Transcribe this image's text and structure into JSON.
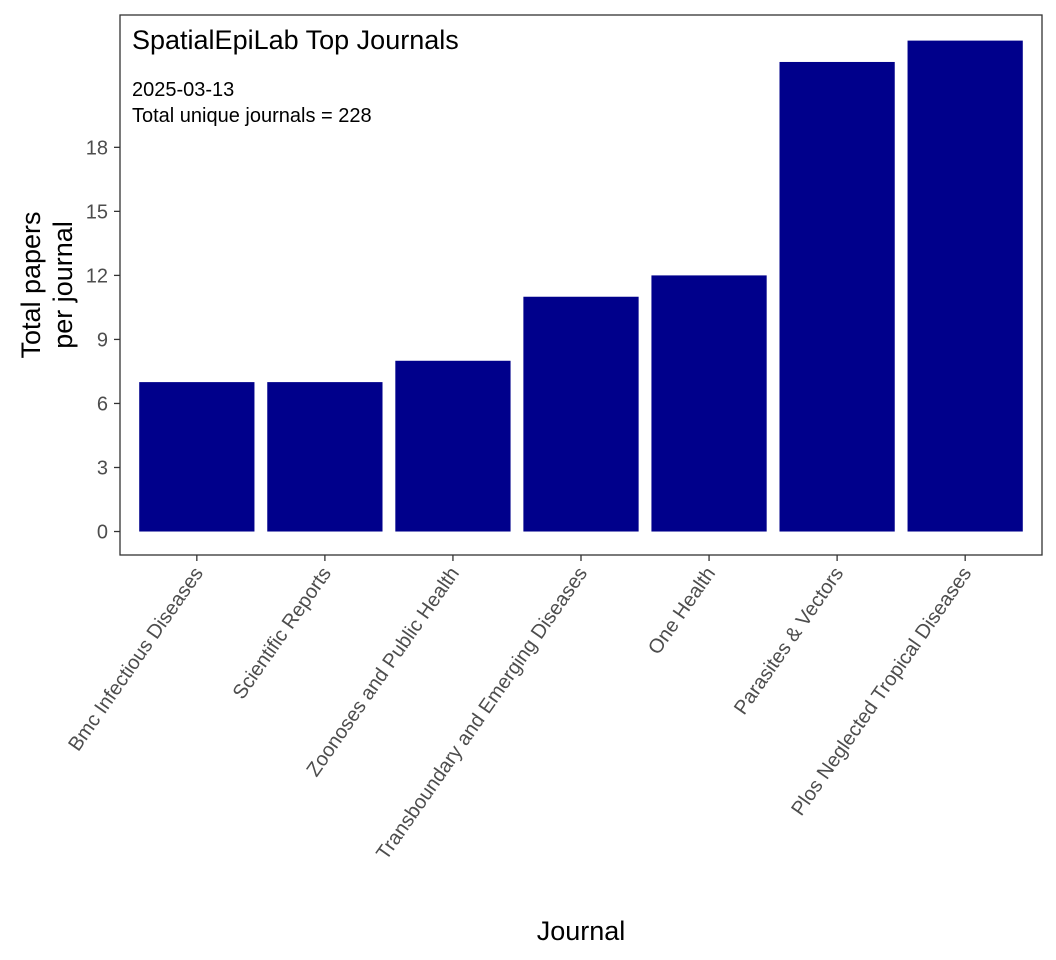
{
  "chart_data": {
    "type": "bar",
    "title": "SpatialEpiLab Top Journals",
    "subtitle_lines": [
      "2025-03-13",
      "Total unique journals =  228"
    ],
    "xlabel": "Journal",
    "ylabel_lines": [
      "Total papers",
      "per journal"
    ],
    "categories": [
      "Bmc Infectious Diseases",
      "Scientific Reports",
      "Zoonoses and Public Health",
      "Transboundary and Emerging Diseases",
      "One Health",
      "Parasites & Vectors",
      "Plos Neglected Tropical Diseases"
    ],
    "values": [
      7,
      7,
      8,
      11,
      12,
      22,
      23
    ],
    "yticks": [
      0,
      3,
      6,
      9,
      12,
      15,
      18
    ],
    "ylim": [
      -1.1,
      24.2
    ],
    "grid": false,
    "legend": "none",
    "bar_color": "#00008B",
    "panel_border_color": "#333333"
  }
}
